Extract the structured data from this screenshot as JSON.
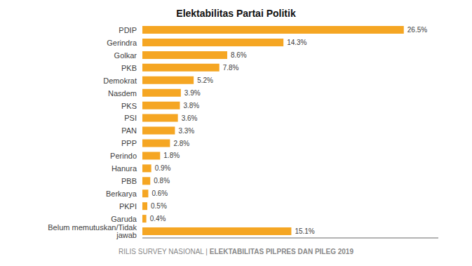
{
  "chart_data": {
    "type": "bar",
    "title": "Elektabilitas Partai Politik",
    "orientation": "horizontal",
    "categories": [
      "PDIP",
      "Gerindra",
      "Golkar",
      "PKB",
      "Demokrat",
      "Nasdem",
      "PKS",
      "PSI",
      "PAN",
      "PPP",
      "Perindo",
      "Hanura",
      "PBB",
      "Berkarya",
      "PKPI",
      "Garuda",
      "Belum memutuskan/Tidak jawab"
    ],
    "values": [
      26.5,
      14.3,
      8.6,
      7.8,
      5.2,
      3.9,
      3.8,
      3.6,
      3.3,
      2.8,
      1.8,
      0.9,
      0.8,
      0.6,
      0.5,
      0.4,
      15.1
    ],
    "value_labels": [
      "26.5%",
      "14.3%",
      "8.6%",
      "7.8%",
      "5.2%",
      "3.9%",
      "3.8%",
      "3.6%",
      "3.3%",
      "2.8%",
      "1.8%",
      "0.9%",
      "0.8%",
      "0.6%",
      "0.5%",
      "0.4%",
      "15.1%"
    ],
    "data_labels": true,
    "color": "#F5A623",
    "xlim": [
      0,
      30
    ],
    "grid": false,
    "tick_labels": "y",
    "annotations": [
      "RILIS SURVEY NASIONAL | ",
      "ELEKTABILITAS PILPRES DAN PILEG 2019"
    ]
  }
}
